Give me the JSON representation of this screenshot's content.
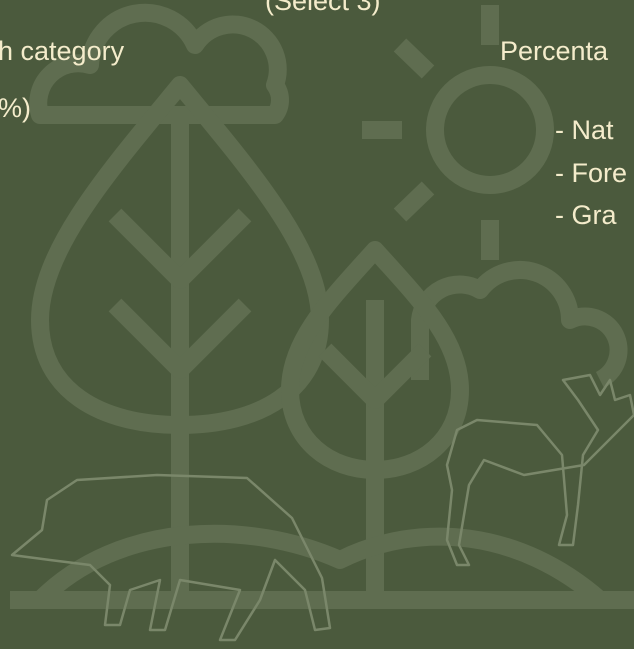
{
  "header": {
    "note": "(Select 3)"
  },
  "left": {
    "heading": "h category",
    "line": "%)"
  },
  "right": {
    "heading": "Percenta",
    "items": [
      "- Nat",
      "- Fore",
      "- Gra"
    ]
  }
}
